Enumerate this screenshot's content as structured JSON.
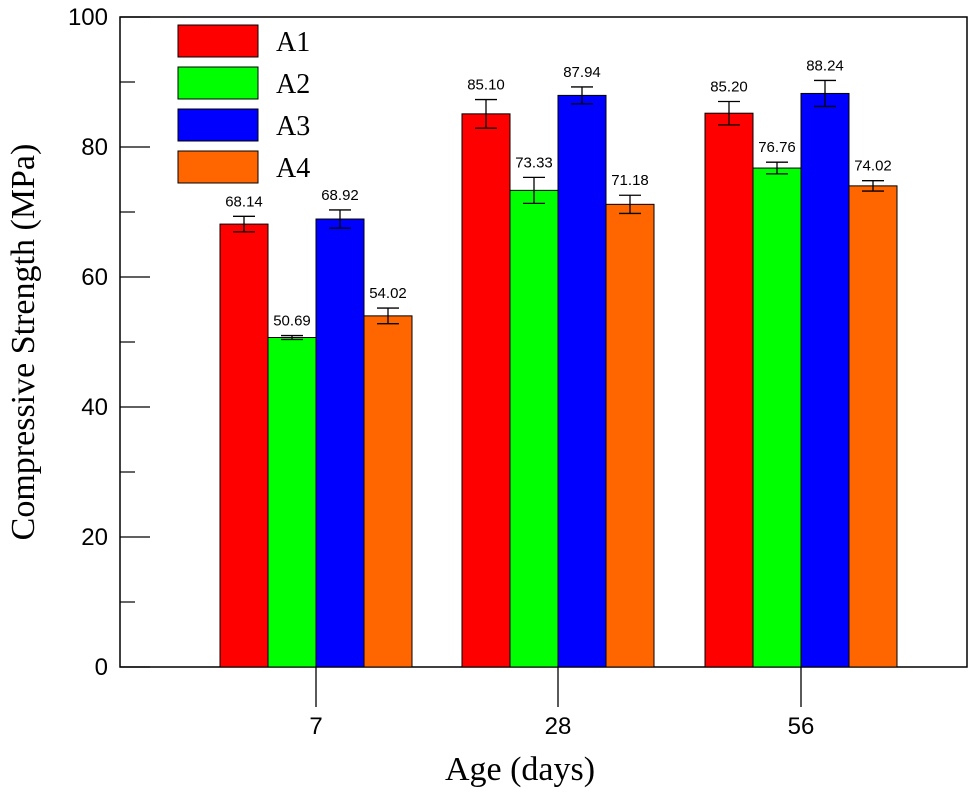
{
  "chart_data": {
    "type": "bar",
    "title": "",
    "xlabel": "Age (days)",
    "ylabel": "Compressive Strength (MPa)",
    "categories": [
      "7",
      "28",
      "56"
    ],
    "ylim": [
      0,
      100
    ],
    "yticks": [
      0,
      20,
      40,
      60,
      80,
      100
    ],
    "grid": false,
    "legend_position": "top-left",
    "series": [
      {
        "name": "A1",
        "color": "#ff0000",
        "values": [
          68.14,
          85.1,
          85.2
        ],
        "value_labels": [
          "68.14",
          "85.10",
          "85.20"
        ],
        "errors": [
          1.2,
          2.2,
          1.8
        ]
      },
      {
        "name": "A2",
        "color": "#00ff00",
        "values": [
          50.69,
          73.33,
          76.76
        ],
        "value_labels": [
          "50.69",
          "73.33",
          "76.76"
        ],
        "errors": [
          0.3,
          2.0,
          0.9
        ]
      },
      {
        "name": "A3",
        "color": "#0000ff",
        "values": [
          68.92,
          87.94,
          88.24
        ],
        "value_labels": [
          "68.92",
          "87.94",
          "88.24"
        ],
        "errors": [
          1.4,
          1.3,
          2.0
        ]
      },
      {
        "name": "A4",
        "color": "#ff6600",
        "values": [
          54.02,
          71.18,
          74.02
        ],
        "value_labels": [
          "54.02",
          "71.18",
          "74.02"
        ],
        "errors": [
          1.2,
          1.4,
          0.8
        ]
      }
    ]
  }
}
